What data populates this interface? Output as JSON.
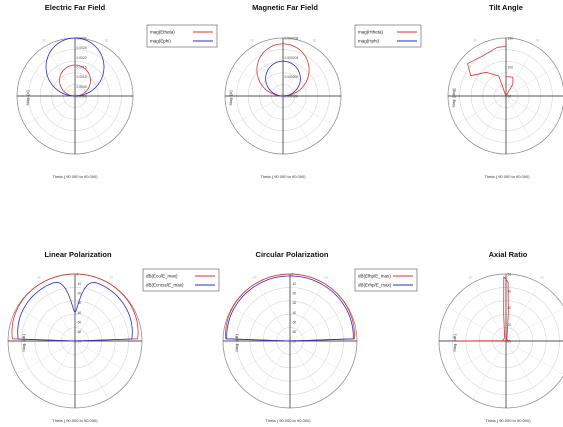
{
  "chart_data": [
    {
      "type": "polar",
      "title": "Electric Far Field",
      "xlabel": "Theta ( 90.000 to 90.000)",
      "ylabel": "Mag. [V]",
      "xlabel_color": "#333333",
      "rlim": [
        0,
        0.003
      ],
      "rticks": [
        "0.0030",
        "0.0025",
        "0.0020",
        "0.0015",
        "0.0010",
        "0.0005",
        "0.0000"
      ],
      "angle_ticks": [
        "-30",
        "30"
      ],
      "legend_placement": "top-right",
      "grid": true,
      "series": [
        {
          "name": "mag(Etheta)",
          "color": "#e03030",
          "shape": "cos",
          "peak": 0.0016
        },
        {
          "name": "mag(Ephi)",
          "color": "#2a2ad0",
          "shape": "cos",
          "peak": 0.003
        }
      ]
    },
    {
      "type": "polar",
      "title": "Magnetic Far Field",
      "xlabel": "Theta ( 90.000 to 90.000)",
      "ylabel": "Mag. [A]",
      "xlabel_color": "#333333",
      "rlim": [
        0,
        6e-06
      ],
      "rticks": [
        "0.000006",
        "0.000004",
        "0.000002",
        "0.000000"
      ],
      "angle_ticks": [
        "-30",
        "30"
      ],
      "legend_placement": "top-right",
      "grid": true,
      "series": [
        {
          "name": "mag(Htheta)",
          "color": "#e03030",
          "shape": "cos",
          "peak": 5.4e-06
        },
        {
          "name": "mag(Hphi)",
          "color": "#2a2ad0",
          "shape": "cos",
          "peak": 3.6e-06
        }
      ]
    },
    {
      "type": "polar",
      "title": "Tilt Angle",
      "xlabel": "Theta ( 90.000 to 90.000)",
      "ylabel": "Mag. [deg]",
      "xlabel_color": "#e03030",
      "rlim": [
        0,
        150
      ],
      "rticks": [
        "150",
        "100",
        "50"
      ],
      "angle_ticks": [
        "-30",
        "30"
      ],
      "grid": true,
      "series": [
        {
          "color": "#e03030",
          "shape": "points",
          "points": [
            [
              0,
              50
            ],
            [
              20,
              52
            ],
            [
              30,
              35
            ],
            [
              40,
              0
            ],
            [
              0,
              0
            ],
            [
              -20,
              55
            ],
            [
              -40,
              80
            ],
            [
              -60,
              105
            ],
            [
              -50,
              130
            ],
            [
              -30,
              120
            ],
            [
              -10,
              128
            ],
            [
              0,
              128
            ]
          ]
        }
      ]
    },
    {
      "type": "polar",
      "title": "Linear Polarization",
      "xlabel": "Theta ( 90.000 to 90.000)",
      "ylabel": "Mag. [dB]",
      "xlabel_color": "#333333",
      "rlim": [
        -70,
        0
      ],
      "rticks": [
        "0",
        "-10",
        "-20",
        "-30",
        "-40",
        "-50",
        "-60",
        "-70"
      ],
      "angle_ticks": [
        "-30",
        "30"
      ],
      "legend_placement": "top-right",
      "grid": true,
      "series": [
        {
          "name": "dB(Eco/E_max)",
          "color": "#e03030",
          "shape": "dome",
          "peak": 0,
          "edge": -5
        },
        {
          "name": "dB(Ecross/E_max)",
          "color": "#2a2ad0",
          "shape": "dip",
          "peak": -5,
          "dip": -40
        }
      ]
    },
    {
      "type": "polar",
      "title": "Circular Polarization",
      "xlabel": "Theta ( 90.000 to 90.000)",
      "ylabel": "Mag. [dB]",
      "xlabel_color": "#333333",
      "rlim": [
        -70,
        0
      ],
      "rticks": [
        "0",
        "-10",
        "-20",
        "-30",
        "-40",
        "-50",
        "-60",
        "-70"
      ],
      "angle_ticks": [
        "-30",
        "30"
      ],
      "legend_placement": "top-right",
      "grid": true,
      "series": [
        {
          "name": "dB(Elhp/E_max)",
          "color": "#e03030",
          "shape": "dome",
          "peak": 0,
          "edge": -3
        },
        {
          "name": "dB(Erhp/E_max)",
          "color": "#2a2ad0",
          "shape": "dome",
          "peak": -2,
          "edge": -4
        }
      ]
    },
    {
      "type": "polar",
      "title": "Axial Ratio",
      "xlabel": "Theta ( 90.000 to 90.000)",
      "ylabel": "Mag. [dB]",
      "xlabel_color": "#e03030",
      "rlim": [
        0,
        50
      ],
      "rticks": [
        "50",
        "40",
        "30",
        "20",
        "10"
      ],
      "angle_ticks": [
        "-30",
        "30"
      ],
      "grid": true,
      "series": [
        {
          "color": "#e03030",
          "shape": "points",
          "points": [
            [
              -90,
              40
            ],
            [
              -85,
              3
            ],
            [
              -60,
              2
            ],
            [
              -20,
              3
            ],
            [
              -5,
              20
            ],
            [
              -2,
              48
            ],
            [
              0,
              46
            ],
            [
              2,
              44
            ],
            [
              5,
              20
            ],
            [
              20,
              2
            ],
            [
              60,
              1
            ],
            [
              85,
              3
            ],
            [
              90,
              2
            ]
          ]
        }
      ]
    }
  ]
}
